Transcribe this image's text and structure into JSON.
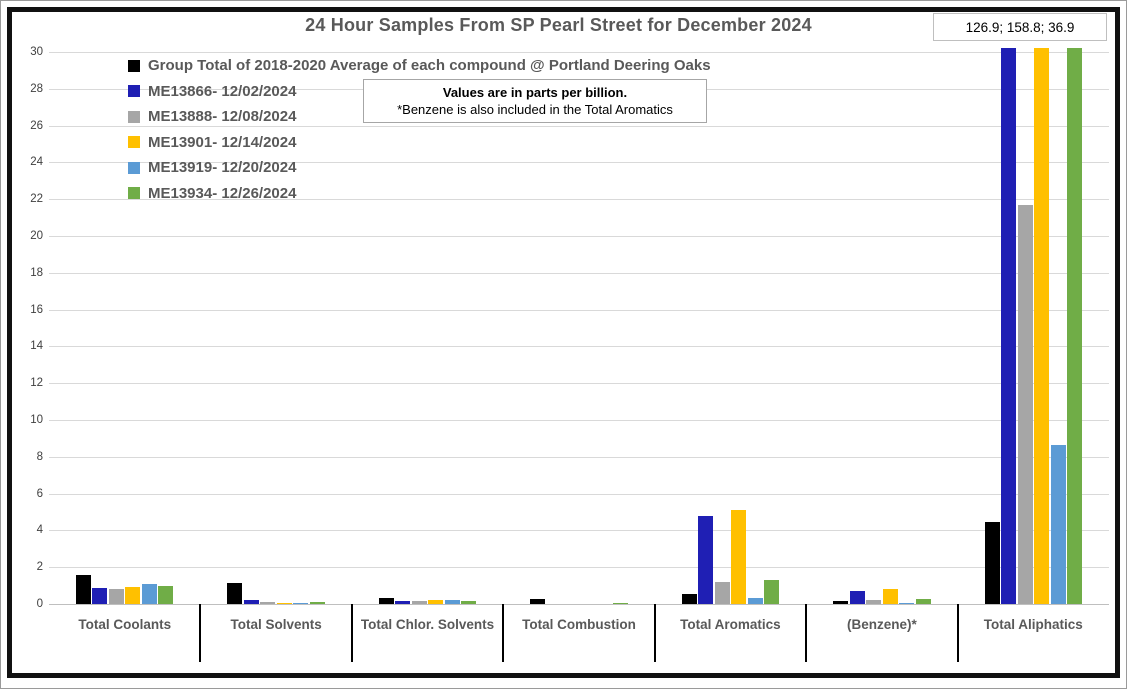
{
  "title": "24 Hour Samples From SP Pearl Street for December 2024",
  "annotation_box": {
    "text": "126.9; 158.8; 36.9"
  },
  "note_box": {
    "line1": "Values are in parts per billion.",
    "line2": "*Benzene is also included in the Total Aromatics"
  },
  "colors": {
    "avg_black": "#000000",
    "sample1_blue": "#1f1fb4",
    "sample2_gray": "#a6a6a6",
    "sample3_yellow": "#ffc000",
    "sample4_lightblue": "#5b9bd5",
    "sample5_green": "#70ad47",
    "text_gray": "#595959",
    "gridline": "#d9d9d9"
  },
  "chart_data": {
    "type": "bar",
    "title": "24 Hour Samples From SP Pearl Street for December 2024",
    "unit": "parts per billion",
    "xlabel": "",
    "ylabel": "",
    "ylim": [
      0,
      30
    ],
    "yticks": [
      0,
      2,
      4,
      6,
      8,
      10,
      12,
      14,
      16,
      18,
      20,
      22,
      24,
      26,
      28,
      30
    ],
    "grid": true,
    "legend_position": "top-left",
    "offscale_values_note": "126.9; 158.8; 36.9",
    "categories": [
      "Total Coolants",
      "Total Solvents",
      "Total Chlor. Solvents",
      "Total Combustion",
      "Total Aromatics",
      "(Benzene)*",
      "Total Aliphatics"
    ],
    "series": [
      {
        "name": "Group Total of 2018-2020 Average of each compound @ Portland Deering Oaks",
        "color": "#000000",
        "values": [
          1.55,
          1.15,
          0.35,
          0.25,
          0.55,
          0.15,
          4.45
        ]
      },
      {
        "name": "ME13866- 12/02/2024",
        "color": "#1f1fb4",
        "values": [
          0.85,
          0.2,
          0.15,
          0,
          4.8,
          0.7,
          126.9
        ]
      },
      {
        "name": "ME13888- 12/08/2024",
        "color": "#a6a6a6",
        "values": [
          0.8,
          0.12,
          0.15,
          0,
          1.2,
          0.2,
          21.7
        ]
      },
      {
        "name": "ME13901- 12/14/2024",
        "color": "#ffc000",
        "values": [
          0.95,
          0.07,
          0.2,
          0,
          5.1,
          0.8,
          158.8
        ]
      },
      {
        "name": "ME13919- 12/20/2024",
        "color": "#5b9bd5",
        "values": [
          1.1,
          0.07,
          0.2,
          0,
          0.35,
          0.05,
          8.65
        ]
      },
      {
        "name": "ME13934- 12/26/2024",
        "color": "#70ad47",
        "values": [
          1.0,
          0.12,
          0.15,
          0.08,
          1.3,
          0.25,
          36.9
        ]
      }
    ]
  }
}
